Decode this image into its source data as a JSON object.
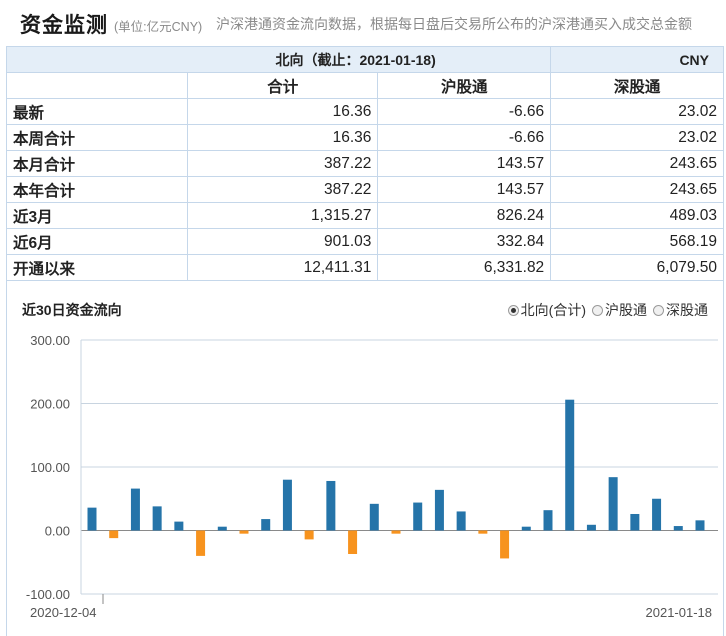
{
  "header": {
    "title": "资金监测",
    "unit_note": "(单位:亿元CNY)",
    "description": "沪深港通资金流向数据，根据每日盘后交易所公布的沪深港通买入成交总金额"
  },
  "table": {
    "caption": "北向（截止：2021-01-18)",
    "currency": "CNY",
    "columns": [
      "合计",
      "沪股通",
      "深股通"
    ],
    "rows": [
      {
        "label": "最新",
        "values": [
          "16.36",
          "-6.66",
          "23.02"
        ]
      },
      {
        "label": "本周合计",
        "values": [
          "16.36",
          "-6.66",
          "23.02"
        ]
      },
      {
        "label": "本月合计",
        "values": [
          "387.22",
          "143.57",
          "243.65"
        ]
      },
      {
        "label": "本年合计",
        "values": [
          "387.22",
          "143.57",
          "243.65"
        ]
      },
      {
        "label": "近3月",
        "values": [
          "1,315.27",
          "826.24",
          "489.03"
        ]
      },
      {
        "label": "近6月",
        "values": [
          "901.03",
          "332.84",
          "568.19"
        ]
      },
      {
        "label": "开通以来",
        "values": [
          "12,411.31",
          "6,331.82",
          "6,079.50"
        ]
      }
    ]
  },
  "chart_section": {
    "title": "近30日资金流向",
    "options": [
      {
        "label": "北向(合计)",
        "selected": true
      },
      {
        "label": "沪股通",
        "selected": false
      },
      {
        "label": "深股通",
        "selected": false
      }
    ]
  },
  "chart_data": {
    "type": "bar",
    "series_colors": {
      "positive": "#2574a9",
      "negative": "#f7931e"
    },
    "ylim": [
      -100,
      300
    ],
    "yticks": [
      "300.00",
      "200.00",
      "100.00",
      "0.00",
      "-100.00"
    ],
    "x_start_label": "2020-12-04",
    "x_end_label": "2021-01-18",
    "values": [
      36,
      -12,
      66,
      38,
      14,
      -40,
      6,
      -5,
      18,
      80,
      -14,
      78,
      -37,
      42,
      -5,
      44,
      64,
      30,
      -5,
      -44,
      6,
      32,
      206,
      9,
      84,
      26,
      50,
      7,
      16
    ]
  }
}
